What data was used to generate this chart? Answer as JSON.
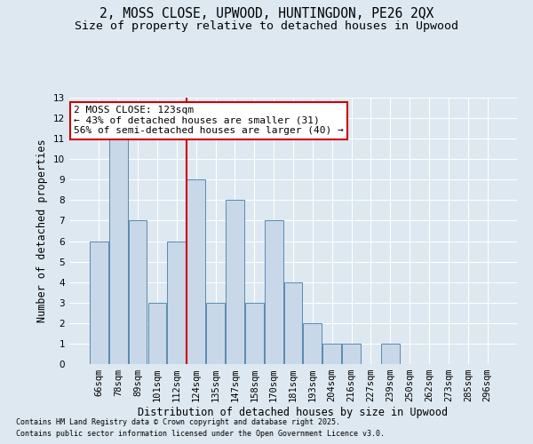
{
  "title1": "2, MOSS CLOSE, UPWOOD, HUNTINGDON, PE26 2QX",
  "title2": "Size of property relative to detached houses in Upwood",
  "xlabel": "Distribution of detached houses by size in Upwood",
  "ylabel": "Number of detached properties",
  "categories": [
    "66sqm",
    "78sqm",
    "89sqm",
    "101sqm",
    "112sqm",
    "124sqm",
    "135sqm",
    "147sqm",
    "158sqm",
    "170sqm",
    "181sqm",
    "193sqm",
    "204sqm",
    "216sqm",
    "227sqm",
    "239sqm",
    "250sqm",
    "262sqm",
    "273sqm",
    "285sqm",
    "296sqm"
  ],
  "values": [
    6,
    11,
    7,
    3,
    6,
    9,
    3,
    8,
    3,
    7,
    4,
    2,
    1,
    1,
    0,
    1,
    0,
    0,
    0,
    0,
    0
  ],
  "bar_color": "#c8d8e8",
  "bar_edge_color": "#5a8ab0",
  "annotation_line1": "2 MOSS CLOSE: 123sqm",
  "annotation_line2": "← 43% of detached houses are smaller (31)",
  "annotation_line3": "56% of semi-detached houses are larger (40) →",
  "annotation_box_color": "#ffffff",
  "annotation_box_edge": "#cc0000",
  "vline_index": 4.5,
  "ylim": [
    0,
    13
  ],
  "yticks": [
    0,
    1,
    2,
    3,
    4,
    5,
    6,
    7,
    8,
    9,
    10,
    11,
    12,
    13
  ],
  "footer1": "Contains HM Land Registry data © Crown copyright and database right 2025.",
  "footer2": "Contains public sector information licensed under the Open Government Licence v3.0.",
  "background_color": "#dde8f0",
  "plot_bg_color": "#dde8f0",
  "grid_color": "#ffffff",
  "title_fontsize": 10.5,
  "subtitle_fontsize": 9.5,
  "axis_label_fontsize": 8.5,
  "tick_fontsize": 7.5,
  "annotation_fontsize": 8
}
